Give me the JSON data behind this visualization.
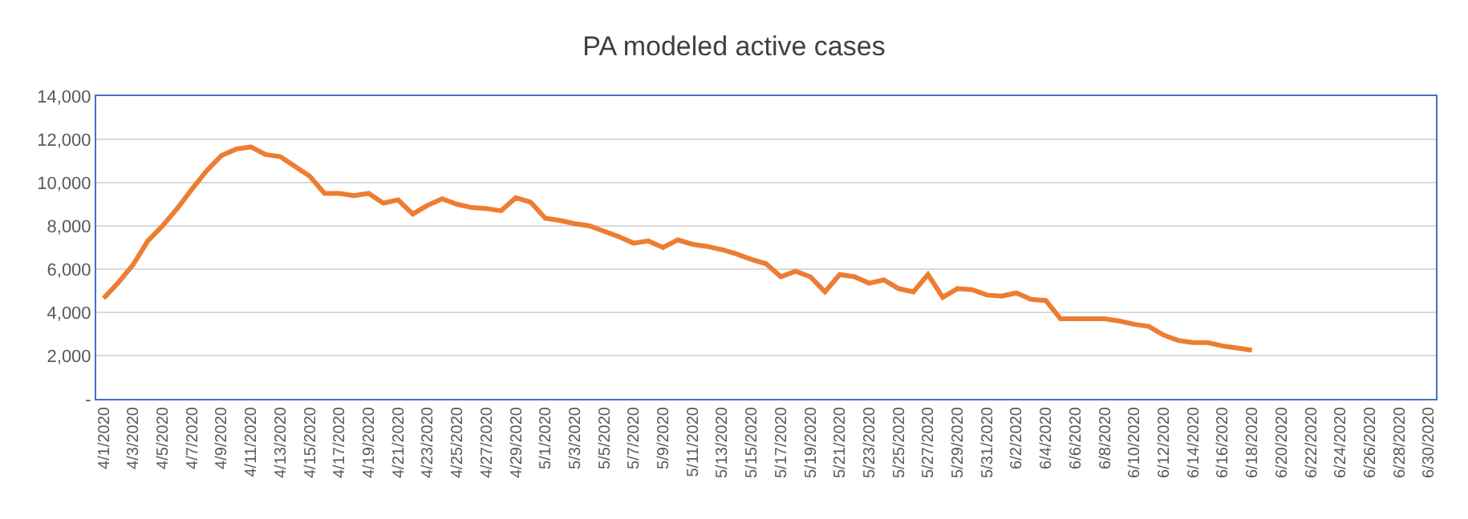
{
  "chart_data": {
    "type": "line",
    "title": "PA modeled active cases",
    "categories": [
      "4/1/2020",
      null,
      "4/3/2020",
      null,
      "4/5/2020",
      null,
      "4/7/2020",
      null,
      "4/9/2020",
      null,
      "4/11/2020",
      null,
      "4/13/2020",
      null,
      "4/15/2020",
      null,
      "4/17/2020",
      null,
      "4/19/2020",
      null,
      "4/21/2020",
      null,
      "4/23/2020",
      null,
      "4/25/2020",
      null,
      "4/27/2020",
      null,
      "4/29/2020",
      null,
      "5/1/2020",
      null,
      "5/3/2020",
      null,
      "5/5/2020",
      null,
      "5/7/2020",
      null,
      "5/9/2020",
      null,
      "5/11/2020",
      null,
      "5/13/2020",
      null,
      "5/15/2020",
      null,
      "5/17/2020",
      null,
      "5/19/2020",
      null,
      "5/21/2020",
      null,
      "5/23/2020",
      null,
      "5/25/2020",
      null,
      "5/27/2020",
      null,
      "5/29/2020",
      null,
      "5/31/2020",
      null,
      "6/2/2020",
      null,
      "6/4/2020",
      null,
      "6/6/2020",
      null,
      "6/8/2020",
      null,
      "6/10/2020",
      null,
      "6/12/2020",
      null,
      "6/14/2020",
      null,
      "6/16/2020",
      null,
      "6/18/2020",
      null,
      "6/20/2020",
      null,
      "6/22/2020",
      null,
      "6/24/2020",
      null,
      "6/26/2020",
      null,
      "6/28/2020",
      null,
      "6/30/2020"
    ],
    "series": [
      {
        "color": "#ed7d31",
        "values": [
          4650,
          5380,
          6200,
          7300,
          8000,
          8800,
          9700,
          10550,
          11250,
          11550,
          11650,
          11300,
          11200,
          10750,
          10300,
          9500,
          9500,
          9400,
          9500,
          9050,
          9200,
          8550,
          8950,
          9250,
          9000,
          8850,
          8800,
          8700,
          9300,
          9100,
          8350,
          8250,
          8100,
          8000,
          7750,
          7500,
          7200,
          7300,
          7000,
          7350,
          7150,
          7050,
          6900,
          6700,
          6450,
          6250,
          5650,
          5900,
          5650,
          4950,
          5750,
          5650,
          5350,
          5500,
          5100,
          4950,
          5750,
          4700,
          5100,
          5050,
          4800,
          4750,
          4900,
          4600,
          4550,
          3700,
          3700,
          3700,
          3700,
          3600,
          3450,
          3350,
          2950,
          2700,
          2600,
          2600,
          2450,
          2350,
          2250,
          null,
          null,
          null,
          null,
          null,
          null,
          null,
          null,
          null,
          null,
          null,
          null
        ]
      }
    ],
    "ylim": [
      0,
      14000
    ],
    "yticks": [
      {
        "value": 0,
        "label": "-"
      },
      {
        "value": 2000,
        "label": "2,000"
      },
      {
        "value": 4000,
        "label": "4,000"
      },
      {
        "value": 6000,
        "label": "6,000"
      },
      {
        "value": 8000,
        "label": "8,000"
      },
      {
        "value": 10000,
        "label": "10,000"
      },
      {
        "value": 12000,
        "label": "12,000"
      },
      {
        "value": 14000,
        "label": "14,000"
      }
    ],
    "grid": "y",
    "legend": false,
    "marker": "none",
    "line_style": "solid"
  }
}
